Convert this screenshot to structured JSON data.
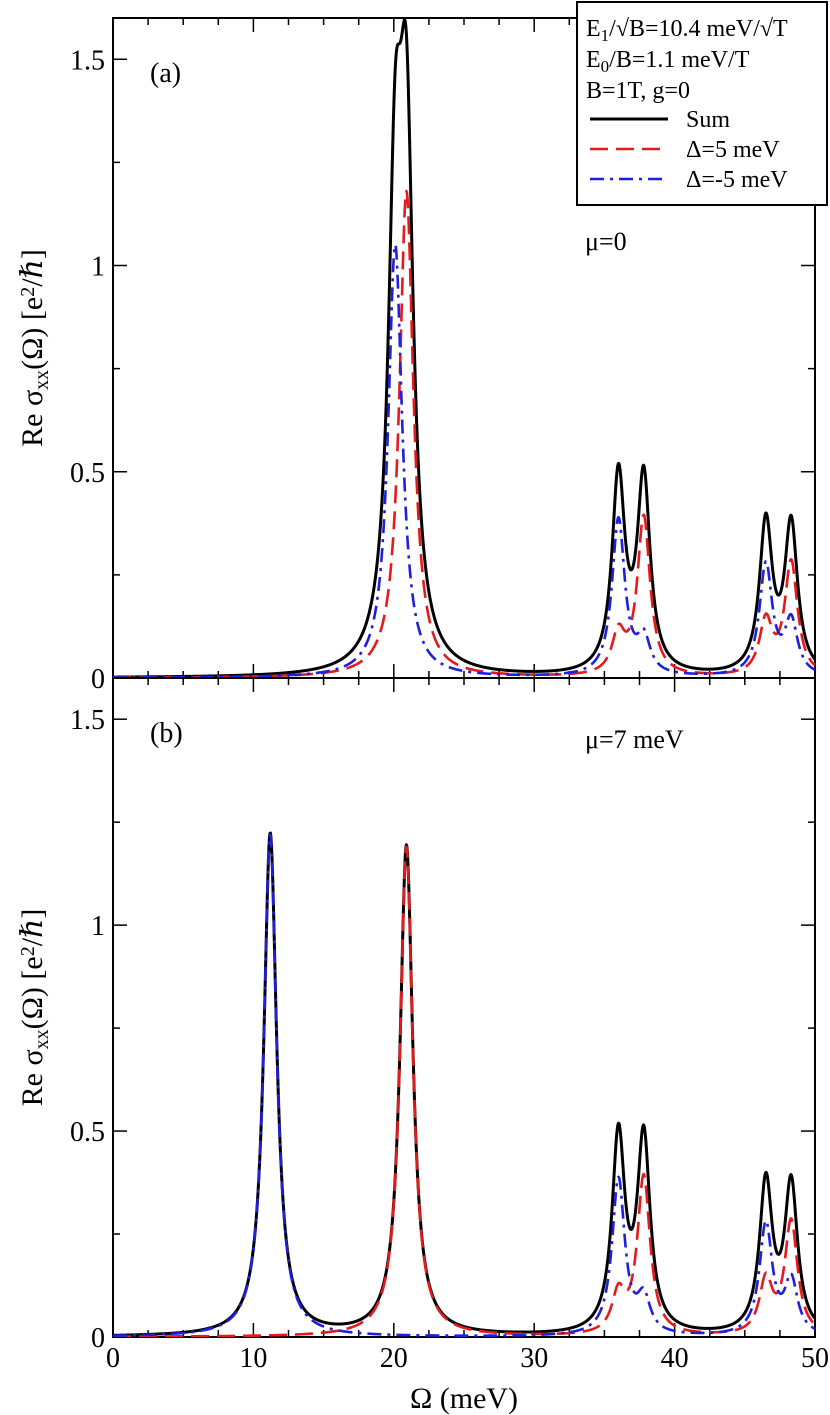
{
  "chart_data": [
    {
      "type": "line",
      "panel_label": "(a)",
      "annotation": "μ=0",
      "xlim": [
        0,
        50
      ],
      "ylim": [
        0,
        1.6
      ],
      "x_ticks": [
        "0",
        "10",
        "20",
        "30",
        "40",
        "50"
      ],
      "y_ticks": [
        "0",
        "0.5",
        "1",
        "1.5"
      ],
      "ylabel": {
        "prefix": "Re σ",
        "sub": "xx",
        "middle": "(Ω) [e",
        "sup": "2",
        "suffix": "/ℏ]"
      },
      "grid": false,
      "legend": {
        "position": "top-right",
        "params": [
          {
            "text": "E",
            "sub": "1",
            "rest": "/√B=10.4 meV/√T"
          },
          {
            "text": "E",
            "sub": "0",
            "rest": "/B=1.1 meV/T"
          },
          {
            "text": "B=1T,   g=0",
            "sub": "",
            "rest": ""
          }
        ],
        "entries": [
          {
            "label": "Sum",
            "color": "#000000",
            "style": "solid"
          },
          {
            "label": "Δ=5 meV",
            "color": "#e41a1c",
            "style": "dashed"
          },
          {
            "label": "Δ=-5 meV",
            "color": "#1f1fdf",
            "style": "dashdot"
          }
        ]
      },
      "series": [
        {
          "name": "Sum",
          "color": "#000000",
          "style": "solid",
          "peaks": [
            [
              20.1,
              1.05,
              0.6
            ],
            [
              20.9,
              1.18,
              0.6
            ],
            [
              36.0,
              0.38,
              0.55
            ],
            [
              36.0,
              0.095,
              0.55
            ],
            [
              37.8,
              0.385,
              0.55
            ],
            [
              37.8,
              0.085,
              0.55
            ],
            [
              46.5,
              0.27,
              0.55
            ],
            [
              46.5,
              0.095,
              0.55
            ],
            [
              48.3,
              0.275,
              0.55
            ],
            [
              48.3,
              0.085,
              0.55
            ]
          ]
        },
        {
          "name": "Δ=5 meV",
          "color": "#e41a1c",
          "style": "dashed",
          "peaks": [
            [
              20.9,
              1.18,
              0.6
            ],
            [
              36.0,
              0.095,
              0.55
            ],
            [
              37.8,
              0.385,
              0.55
            ],
            [
              46.5,
              0.13,
              0.55
            ],
            [
              48.3,
              0.275,
              0.55
            ]
          ]
        },
        {
          "name": "Δ=-5 meV",
          "color": "#1f1fdf",
          "style": "dashdot",
          "peaks": [
            [
              20.1,
              1.05,
              0.6
            ],
            [
              36.0,
              0.38,
              0.55
            ],
            [
              37.8,
              0.085,
              0.55
            ],
            [
              46.5,
              0.27,
              0.55
            ],
            [
              48.3,
              0.13,
              0.55
            ]
          ]
        }
      ]
    },
    {
      "type": "line",
      "panel_label": "(b)",
      "annotation": "μ=7 meV",
      "xlim": [
        0,
        50
      ],
      "ylim": [
        0,
        1.6
      ],
      "x_ticks": [
        "0",
        "10",
        "20",
        "30",
        "40",
        "50"
      ],
      "y_ticks": [
        "0",
        "0.5",
        "1",
        "1.5"
      ],
      "xlabel": "Ω (meV)",
      "ylabel": {
        "prefix": "Re σ",
        "sub": "xx",
        "middle": "(Ω) [e",
        "sup": "2",
        "suffix": "/ℏ]"
      },
      "grid": false,
      "series": [
        {
          "name": "Sum",
          "color": "#000000",
          "style": "solid",
          "peaks": [
            [
              11.2,
              1.22,
              0.55
            ],
            [
              20.9,
              1.19,
              0.55
            ],
            [
              36.0,
              0.38,
              0.55
            ],
            [
              36.0,
              0.095,
              0.55
            ],
            [
              37.8,
              0.385,
              0.55
            ],
            [
              37.8,
              0.085,
              0.55
            ],
            [
              46.5,
              0.27,
              0.55
            ],
            [
              46.5,
              0.095,
              0.55
            ],
            [
              48.3,
              0.275,
              0.55
            ],
            [
              48.3,
              0.085,
              0.55
            ]
          ]
        },
        {
          "name": "Δ=5 meV",
          "color": "#e41a1c",
          "style": "dashed",
          "peaks": [
            [
              20.9,
              1.19,
              0.55
            ],
            [
              36.0,
              0.095,
              0.55
            ],
            [
              37.8,
              0.385,
              0.55
            ],
            [
              46.5,
              0.13,
              0.55
            ],
            [
              48.3,
              0.275,
              0.55
            ]
          ]
        },
        {
          "name": "Δ=-5 meV",
          "color": "#1f1fdf",
          "style": "dashdot",
          "peaks": [
            [
              11.2,
              1.22,
              0.55
            ],
            [
              36.0,
              0.38,
              0.55
            ],
            [
              37.8,
              0.085,
              0.55
            ],
            [
              46.5,
              0.27,
              0.55
            ],
            [
              48.3,
              0.13,
              0.55
            ]
          ]
        }
      ]
    }
  ]
}
